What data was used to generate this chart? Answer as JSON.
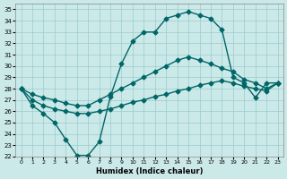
{
  "xlabel": "Humidex (Indice chaleur)",
  "background_color": "#cce9e9",
  "grid_color": "#99cccc",
  "line_color": "#006666",
  "xlim": [
    -0.5,
    23.5
  ],
  "ylim": [
    22,
    35.5
  ],
  "yticks": [
    22,
    23,
    24,
    25,
    26,
    27,
    28,
    29,
    30,
    31,
    32,
    33,
    34,
    35
  ],
  "xticks": [
    0,
    1,
    2,
    3,
    4,
    5,
    6,
    7,
    8,
    9,
    10,
    11,
    12,
    13,
    14,
    15,
    16,
    17,
    18,
    19,
    20,
    21,
    22,
    23
  ],
  "line1_x": [
    0,
    1,
    2,
    3,
    4,
    5,
    6,
    7,
    8,
    9,
    10,
    11,
    12,
    13,
    14,
    15,
    16,
    17,
    18,
    19,
    20,
    21,
    22,
    23
  ],
  "line1_y": [
    28.0,
    26.5,
    25.8,
    25.0,
    23.5,
    22.1,
    22.1,
    23.3,
    27.3,
    30.2,
    32.2,
    33.0,
    33.0,
    34.2,
    34.5,
    34.8,
    34.5,
    34.2,
    33.2,
    29.0,
    28.5,
    27.2,
    28.5,
    28.5
  ],
  "line1_markers": [
    0,
    1,
    2,
    3,
    4,
    5,
    6,
    7,
    9,
    10,
    11,
    12,
    13,
    14,
    15,
    16,
    17,
    18,
    19,
    20,
    21,
    22,
    23
  ],
  "line2_x": [
    0,
    1,
    2,
    3,
    4,
    5,
    6,
    7,
    8,
    9,
    10,
    11,
    12,
    13,
    14,
    15,
    16,
    17,
    18,
    19,
    20,
    21,
    22,
    23
  ],
  "line2_y": [
    28.0,
    27.5,
    27.2,
    27.0,
    26.7,
    26.5,
    26.5,
    27.0,
    27.5,
    28.0,
    28.5,
    29.0,
    29.5,
    30.0,
    30.5,
    30.8,
    30.5,
    30.2,
    29.8,
    29.5,
    28.8,
    28.5,
    28.0,
    28.5
  ],
  "line3_x": [
    0,
    1,
    2,
    3,
    4,
    5,
    6,
    7,
    8,
    9,
    10,
    11,
    12,
    13,
    14,
    15,
    16,
    17,
    18,
    19,
    20,
    21,
    22,
    23
  ],
  "line3_y": [
    28.0,
    27.0,
    26.5,
    26.2,
    26.0,
    25.8,
    25.8,
    26.0,
    26.2,
    26.5,
    26.8,
    27.0,
    27.3,
    27.5,
    27.8,
    28.0,
    28.3,
    28.5,
    28.7,
    28.5,
    28.2,
    28.0,
    27.8,
    28.5
  ],
  "marker": "D",
  "markersize": 2.5,
  "linewidth": 1.0
}
